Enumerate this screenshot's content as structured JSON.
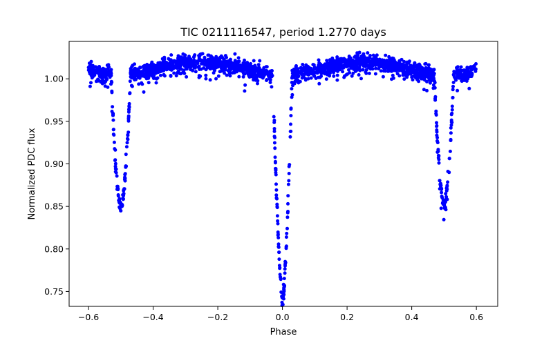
{
  "chart_data": {
    "type": "scatter",
    "title": "TIC 0211116547, period 1.2770 days",
    "xlabel": "Phase",
    "ylabel": "Normalized PDC flux",
    "xlim": [
      -0.66,
      0.666
    ],
    "ylim": [
      0.7325,
      1.044
    ],
    "xticks": [
      -0.6,
      -0.4,
      -0.2,
      0.0,
      0.2,
      0.4,
      0.6
    ],
    "xtick_labels": [
      "−0.6",
      "−0.4",
      "−0.2",
      "0.0",
      "0.2",
      "0.4",
      "0.6"
    ],
    "yticks": [
      0.75,
      0.8,
      0.85,
      0.9,
      0.95,
      1.0
    ],
    "ytick_labels": [
      "0.75",
      "0.80",
      "0.85",
      "0.90",
      "0.95",
      "1.00"
    ],
    "grid": false,
    "marker_color": "#0000ff",
    "phase_range": [
      -0.6,
      0.6
    ],
    "primary_eclipse": {
      "phase": 0.0,
      "min_flux": 0.74,
      "half_width": 0.03
    },
    "secondary_eclipse": {
      "phase": 0.5,
      "min_flux": 0.852,
      "half_width": 0.03
    },
    "out_of_eclipse": {
      "flux_low": 1.005,
      "flux_high": 1.02,
      "max_flux": 1.033
    },
    "point_count": 2200
  }
}
